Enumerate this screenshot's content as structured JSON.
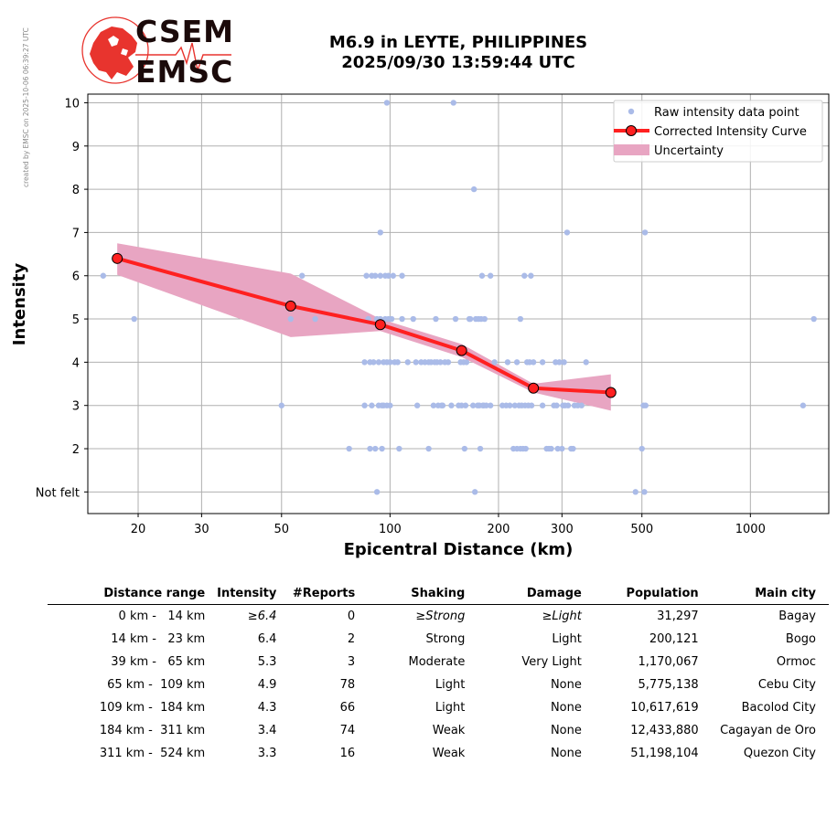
{
  "header": {
    "side_note": "created by EMSC on 2025-10-06 06:39:27 UTC",
    "logo_top": "CSEM",
    "logo_bottom": "EMSC",
    "title_line1": "M6.9 in LEYTE, PHILIPPINES",
    "title_line2": "2025/09/30 13:59:44 UTC"
  },
  "chart_data": {
    "type": "scatter",
    "xlabel": "Epicentral Distance (km)",
    "ylabel": "Intensity",
    "x_scale": "log",
    "xlim": [
      14.5,
      1650
    ],
    "ylim": [
      0.5,
      10.2
    ],
    "x_ticks": [
      20,
      30,
      50,
      100,
      200,
      300,
      500,
      1000
    ],
    "y_ticks": [
      {
        "value": 1,
        "label": "Not felt"
      },
      {
        "value": 2,
        "label": "2"
      },
      {
        "value": 3,
        "label": "3"
      },
      {
        "value": 4,
        "label": "4"
      },
      {
        "value": 5,
        "label": "5"
      },
      {
        "value": 6,
        "label": "6"
      },
      {
        "value": 7,
        "label": "7"
      },
      {
        "value": 8,
        "label": "8"
      },
      {
        "value": 9,
        "label": "9"
      },
      {
        "value": 10,
        "label": "10"
      }
    ],
    "grid": true,
    "legend_position": "top-right",
    "colors": {
      "raw": "#aabbe8",
      "curve": "#ff2020",
      "marker": "#ff2020",
      "uncertainty": "#e8a5c2"
    },
    "legend": [
      {
        "label": "Raw intensity data point",
        "kind": "point"
      },
      {
        "label": "Corrected Intensity Curve",
        "kind": "line"
      },
      {
        "label": "Uncertainty",
        "kind": "band"
      }
    ],
    "raw_points": [
      [
        16,
        6
      ],
      [
        19.5,
        5
      ],
      [
        50,
        3
      ],
      [
        53,
        5
      ],
      [
        57,
        6
      ],
      [
        62,
        5
      ],
      [
        77,
        2
      ],
      [
        85,
        3
      ],
      [
        85,
        4
      ],
      [
        86,
        6
      ],
      [
        87,
        5
      ],
      [
        88,
        4
      ],
      [
        88,
        2
      ],
      [
        89,
        6
      ],
      [
        89,
        3
      ],
      [
        90,
        4
      ],
      [
        91,
        6
      ],
      [
        91,
        2
      ],
      [
        92,
        5
      ],
      [
        92,
        1
      ],
      [
        93,
        4
      ],
      [
        93,
        3
      ],
      [
        94,
        7
      ],
      [
        94,
        6
      ],
      [
        94,
        5
      ],
      [
        95,
        3
      ],
      [
        95,
        2
      ],
      [
        96,
        4
      ],
      [
        96,
        3
      ],
      [
        97,
        6
      ],
      [
        97,
        5
      ],
      [
        98,
        10
      ],
      [
        98,
        4
      ],
      [
        98,
        3
      ],
      [
        99,
        6
      ],
      [
        99,
        5
      ],
      [
        100,
        4
      ],
      [
        100,
        3
      ],
      [
        101,
        5
      ],
      [
        102,
        6
      ],
      [
        103,
        4
      ],
      [
        105,
        4
      ],
      [
        106,
        2
      ],
      [
        108,
        6
      ],
      [
        108,
        5
      ],
      [
        112,
        4
      ],
      [
        116,
        5
      ],
      [
        118,
        4
      ],
      [
        119,
        3
      ],
      [
        122,
        4
      ],
      [
        125,
        4
      ],
      [
        128,
        2
      ],
      [
        128,
        4
      ],
      [
        130,
        4
      ],
      [
        132,
        3
      ],
      [
        133,
        4
      ],
      [
        134,
        5
      ],
      [
        135,
        4
      ],
      [
        136,
        3
      ],
      [
        138,
        4
      ],
      [
        139,
        3
      ],
      [
        140,
        3
      ],
      [
        142,
        4
      ],
      [
        145,
        4
      ],
      [
        148,
        3
      ],
      [
        150,
        10
      ],
      [
        152,
        5
      ],
      [
        155,
        3
      ],
      [
        157,
        4
      ],
      [
        158,
        3
      ],
      [
        160,
        4
      ],
      [
        161,
        2
      ],
      [
        162,
        3
      ],
      [
        163,
        4
      ],
      [
        166,
        5
      ],
      [
        167,
        5
      ],
      [
        170,
        3
      ],
      [
        171,
        8
      ],
      [
        172,
        1
      ],
      [
        173,
        5
      ],
      [
        175,
        3
      ],
      [
        176,
        5
      ],
      [
        177,
        3
      ],
      [
        178,
        2
      ],
      [
        179,
        5
      ],
      [
        180,
        6
      ],
      [
        181,
        3
      ],
      [
        182,
        3
      ],
      [
        183,
        5
      ],
      [
        185,
        3
      ],
      [
        190,
        6
      ],
      [
        190,
        3
      ],
      [
        195,
        4
      ],
      [
        205,
        3
      ],
      [
        210,
        3
      ],
      [
        212,
        4
      ],
      [
        215,
        3
      ],
      [
        220,
        2
      ],
      [
        222,
        3
      ],
      [
        225,
        2
      ],
      [
        225,
        4
      ],
      [
        228,
        3
      ],
      [
        230,
        2
      ],
      [
        230,
        5
      ],
      [
        232,
        3
      ],
      [
        234,
        2
      ],
      [
        236,
        6
      ],
      [
        237,
        3
      ],
      [
        238,
        2
      ],
      [
        240,
        4
      ],
      [
        242,
        3
      ],
      [
        244,
        4
      ],
      [
        246,
        6
      ],
      [
        247,
        3
      ],
      [
        250,
        4
      ],
      [
        265,
        3
      ],
      [
        265,
        4
      ],
      [
        272,
        2
      ],
      [
        276,
        2
      ],
      [
        280,
        2
      ],
      [
        285,
        3
      ],
      [
        288,
        4
      ],
      [
        290,
        3
      ],
      [
        292,
        2
      ],
      [
        295,
        4
      ],
      [
        300,
        2
      ],
      [
        302,
        3
      ],
      [
        304,
        4
      ],
      [
        306,
        3
      ],
      [
        310,
        7
      ],
      [
        312,
        3
      ],
      [
        318,
        2
      ],
      [
        322,
        2
      ],
      [
        325,
        3
      ],
      [
        332,
        3
      ],
      [
        340,
        3
      ],
      [
        350,
        4
      ],
      [
        480,
        1
      ],
      [
        500,
        2
      ],
      [
        505,
        3
      ],
      [
        508,
        1
      ],
      [
        510,
        7
      ],
      [
        512,
        3
      ],
      [
        1400,
        3
      ],
      [
        1500,
        5
      ]
    ],
    "curve": {
      "x": [
        17.5,
        53,
        94,
        158,
        250,
        410
      ],
      "y": [
        6.4,
        5.3,
        4.87,
        4.27,
        3.4,
        3.3
      ]
    },
    "uncertainty": {
      "x": [
        17.5,
        53,
        94,
        158,
        250,
        410
      ],
      "upper": [
        6.75,
        6.05,
        5.0,
        4.42,
        3.5,
        3.72
      ],
      "lower": [
        6.02,
        4.58,
        4.72,
        4.12,
        3.3,
        2.88
      ]
    }
  },
  "table": {
    "headers": [
      "Distance range",
      "Intensity",
      "#Reports",
      "Shaking",
      "Damage",
      "Population",
      "Main city"
    ],
    "rows": [
      {
        "range": "  0 km -   14 km",
        "intensity": "≥6.4",
        "reports": "0",
        "shaking": "≥Strong",
        "damage": "≥Light",
        "population": "31,297",
        "city": "Bagay",
        "italic": true
      },
      {
        "range": " 14 km -   23 km",
        "intensity": "6.4",
        "reports": "2",
        "shaking": "Strong",
        "damage": "Light",
        "population": "200,121",
        "city": "Bogo",
        "italic": false
      },
      {
        "range": " 39 km -   65 km",
        "intensity": "5.3",
        "reports": "3",
        "shaking": "Moderate",
        "damage": "Very Light",
        "population": "1,170,067",
        "city": "Ormoc",
        "italic": false
      },
      {
        "range": " 65 km -  109 km",
        "intensity": "4.9",
        "reports": "78",
        "shaking": "Light",
        "damage": "None",
        "population": "5,775,138",
        "city": "Cebu City",
        "italic": false
      },
      {
        "range": "109 km -  184 km",
        "intensity": "4.3",
        "reports": "66",
        "shaking": "Light",
        "damage": "None",
        "population": "10,617,619",
        "city": "Bacolod City",
        "italic": false
      },
      {
        "range": "184 km -  311 km",
        "intensity": "3.4",
        "reports": "74",
        "shaking": "Weak",
        "damage": "None",
        "population": "12,433,880",
        "city": "Cagayan de Oro",
        "italic": false
      },
      {
        "range": "311 km -  524 km",
        "intensity": "3.3",
        "reports": "16",
        "shaking": "Weak",
        "damage": "None",
        "population": "51,198,104",
        "city": "Quezon City",
        "italic": false
      }
    ]
  }
}
